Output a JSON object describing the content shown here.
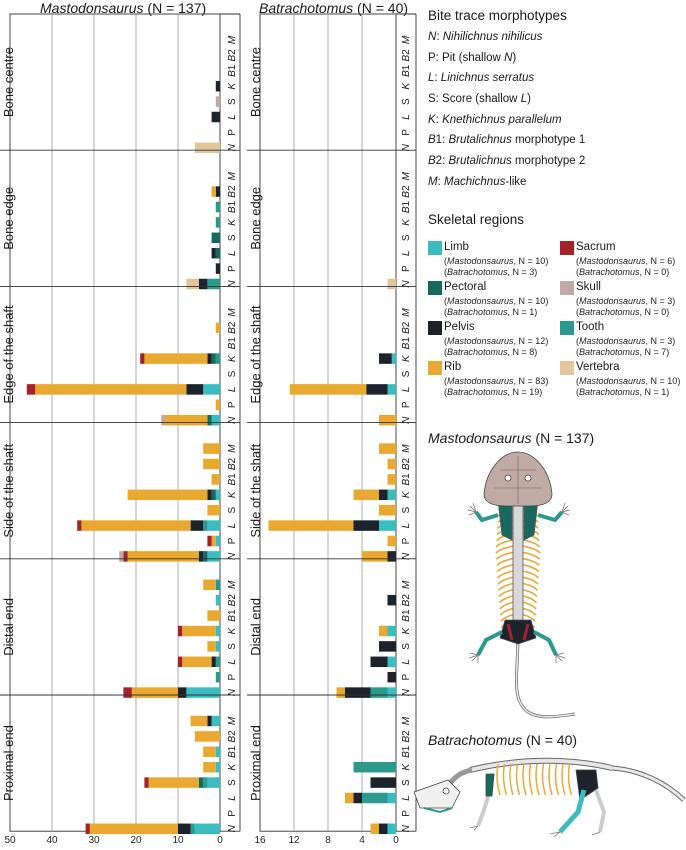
{
  "chart_data": {
    "type": "bar",
    "orientation": "horizontal-stacked-right-to-left",
    "panels": [
      {
        "id": "mas",
        "title_genus": "Mastodonsaurus",
        "title_n": " (N = 137)",
        "xlim": [
          0,
          50
        ],
        "xticks": [
          0,
          10,
          20,
          30,
          40,
          50
        ]
      },
      {
        "id": "bat",
        "title_genus": "Batrachotomus",
        "title_n": " (N = 40)",
        "xlim": [
          0,
          16
        ],
        "xticks": [
          0,
          4,
          8,
          12,
          16
        ]
      }
    ],
    "regions": [
      "Bone centre",
      "Bone edge",
      "Edge of the shaft",
      "Side of the shaft",
      "Distal end",
      "Proximal end"
    ],
    "morphotypes": [
      {
        "pre": "",
        "it": "M",
        "post": ""
      },
      {
        "pre": "",
        "it": "B",
        "post": "2"
      },
      {
        "pre": "",
        "it": "B",
        "post": "1"
      },
      {
        "pre": "",
        "it": "K",
        "post": ""
      },
      {
        "pre": "S",
        "it": "",
        "post": ""
      },
      {
        "pre": "",
        "it": "L",
        "post": ""
      },
      {
        "pre": "P",
        "it": "",
        "post": ""
      },
      {
        "pre": "",
        "it": "N",
        "post": ""
      }
    ],
    "elements": [
      "Limb",
      "Pectoral",
      "Pelvis",
      "Rib",
      "Sacrum",
      "Skull",
      "Tooth",
      "Vertebra"
    ],
    "colors": {
      "Limb": "#3bbcc0",
      "Pectoral": "#17685d",
      "Pelvis": "#1d232c",
      "Rib": "#e9a930",
      "Sacrum": "#a5212a",
      "Skull": "#c0aaa4",
      "Tooth": "#2b9a8d",
      "Vertebra": "#e2c59c"
    },
    "bars": {
      "mas": [
        [
          {},
          {},
          {},
          {
            "Pelvis": 1
          },
          {
            "Skull": 1
          },
          {
            "Pelvis": 2
          },
          {},
          {
            "Vertebra": 6
          }
        ],
        [
          {},
          {
            "Rib": 1,
            "Pelvis": 1
          },
          {
            "Tooth": 1
          },
          {
            "Tooth": 1
          },
          {
            "Pectoral": 2
          },
          {
            "Pectoral": 1,
            "Pelvis": 1
          },
          {
            "Pelvis": 1
          },
          {
            "Tooth": 3,
            "Pelvis": 2,
            "Vertebra": 3
          }
        ],
        [
          {},
          {
            "Rib": 1
          },
          {},
          {
            "Tooth": 1,
            "Pelvis": 1,
            "Rib": 15,
            "Sacrum": 1,
            "Pectoral": 1
          },
          {},
          {
            "Limb": 4,
            "Pelvis": 4,
            "Rib": 36,
            "Sacrum": 2
          },
          {
            "Rib": 1
          },
          {
            "Pectoral": 1,
            "Limb": 2,
            "Rib": 10,
            "Skull": 1
          }
        ],
        [
          {
            "Rib": 4
          },
          {
            "Rib": 4
          },
          {
            "Rib": 2
          },
          {
            "Limb": 1,
            "Pectoral": 1,
            "Pelvis": 1,
            "Rib": 19
          },
          {
            "Rib": 3
          },
          {
            "Tooth": 1,
            "Limb": 3,
            "Pelvis": 3,
            "Rib": 26,
            "Sacrum": 1
          },
          {
            "Limb": 1,
            "Rib": 1,
            "Sacrum": 1
          },
          {
            "Pelvis": 1,
            "Limb": 3,
            "Rib": 17,
            "Sacrum": 1,
            "Pectoral": 1,
            "Skull": 1
          }
        ],
        [
          {
            "Tooth": 1,
            "Rib": 3
          },
          {
            "Limb": 1
          },
          {
            "Rib": 3
          },
          {
            "Limb": 1,
            "Rib": 8,
            "Sacrum": 1
          },
          {
            "Limb": 1,
            "Rib": 2
          },
          {
            "Tooth": 1,
            "Pelvis": 1,
            "Rib": 7,
            "Sacrum": 1
          },
          {
            "Tooth": 1
          },
          {
            "Limb": 8,
            "Pelvis": 2,
            "Rib": 11,
            "Sacrum": 2
          }
        ],
        [
          {
            "Limb": 2,
            "Pelvis": 1,
            "Rib": 4
          },
          {
            "Rib": 6
          },
          {
            "Limb": 1,
            "Rib": 3
          },
          {
            "Limb": 1,
            "Rib": 3
          },
          {
            "Limb": 3,
            "Pectoral": 1,
            "Rib": 12,
            "Sacrum": 1,
            "Tooth": 1
          },
          {},
          {},
          {
            "Limb": 6,
            "Tooth": 1,
            "Pelvis": 3,
            "Rib": 21,
            "Sacrum": 1
          }
        ]
      ],
      "bat": [
        [
          {},
          {},
          {},
          {},
          {},
          {},
          {},
          {}
        ],
        [
          {},
          {},
          {},
          {},
          {},
          {},
          {},
          {
            "Vertebra": 1
          }
        ],
        [
          {},
          {},
          {},
          {
            "Limb": 0.5,
            "Pelvis": 1.5
          },
          {},
          {
            "Limb": 1,
            "Pelvis": 2.5,
            "Rib": 9
          },
          {},
          {
            "Rib": 2
          }
        ],
        [
          {
            "Rib": 2
          },
          {
            "Rib": 1
          },
          {
            "Rib": 1
          },
          {
            "Limb": 1,
            "Pelvis": 1,
            "Rib": 3
          },
          {
            "Rib": 2
          },
          {
            "Limb": 2,
            "Pelvis": 3,
            "Rib": 10
          },
          {
            "Rib": 1
          },
          {
            "Pelvis": 1,
            "Rib": 3
          }
        ],
        [
          {},
          {
            "Pelvis": 1
          },
          {},
          {
            "Limb": 1,
            "Rib": 1
          },
          {
            "Pelvis": 2
          },
          {
            "Limb": 1,
            "Pelvis": 2
          },
          {
            "Pelvis": 1
          },
          {
            "Limb": 1,
            "Tooth": 2,
            "Pelvis": 3,
            "Rib": 1
          }
        ],
        [
          {},
          {},
          {},
          {
            "Tooth": 5
          },
          {
            "Pelvis": 3
          },
          {
            "Limb": 1,
            "Pelvis": 1,
            "Rib": 1,
            "Tooth": 3
          },
          {},
          {
            "Pelvis": 1,
            "Rib": 1,
            "Limb": 1
          }
        ]
      ]
    },
    "legend_placement": "right",
    "grid": true
  },
  "legend": {
    "morph_title": "Bite trace morphotypes",
    "morph": [
      [
        [
          "N",
          "i"
        ],
        [
          ": ",
          "n"
        ],
        [
          "Nihilichnus nihilicus",
          "i"
        ]
      ],
      [
        [
          "P: Pit (shallow ",
          "n"
        ],
        [
          "N",
          "i"
        ],
        [
          ")",
          "n"
        ]
      ],
      [
        [
          "L",
          "i"
        ],
        [
          ": ",
          "n"
        ],
        [
          "Linichnus serratus",
          "i"
        ]
      ],
      [
        [
          "S: Score (shallow ",
          "n"
        ],
        [
          "L",
          "i"
        ],
        [
          ")",
          "n"
        ]
      ],
      [
        [
          "K",
          "i"
        ],
        [
          ": ",
          "n"
        ],
        [
          "Knethichnus parallelum",
          "i"
        ]
      ],
      [
        [
          "B",
          "i"
        ],
        [
          "1: ",
          "n"
        ],
        [
          "Brutalichnus",
          "i"
        ],
        [
          " morphotype 1",
          "n"
        ]
      ],
      [
        [
          "B",
          "i"
        ],
        [
          "2: ",
          "n"
        ],
        [
          "Brutalichnus",
          "i"
        ],
        [
          " morphotype 2",
          "n"
        ]
      ],
      [
        [
          "M",
          "i"
        ],
        [
          ": ",
          "n"
        ],
        [
          "Machichnus",
          "i"
        ],
        [
          "-like",
          "n"
        ]
      ]
    ],
    "skel_title": "Skeletal regions",
    "skel": [
      {
        "key": "Limb",
        "label": "Limb",
        "m": "10",
        "b": "3"
      },
      {
        "key": "Sacrum",
        "label": "Sacrum",
        "m": "6",
        "b": "0"
      },
      {
        "key": "Pectoral",
        "label": "Pectoral",
        "m": "10",
        "b": "1"
      },
      {
        "key": "Skull",
        "label": "Skull",
        "m": "3",
        "b": "0"
      },
      {
        "key": "Pelvis",
        "label": "Pelvis",
        "m": "12",
        "b": "8"
      },
      {
        "key": "Tooth",
        "label": "Tooth",
        "m": "3",
        "b": "7"
      },
      {
        "key": "Rib",
        "label": "Rib",
        "m": "83",
        "b": "19"
      },
      {
        "key": "Vertebra",
        "label": "Vertebra",
        "m": "10",
        "b": "1"
      }
    ],
    "genus_m": "Mastodonsaurus",
    "genus_b": "Batrachotomus",
    "n_prefix": ", N = "
  },
  "illustrations": {
    "mas_genus": "Mastodonsaurus",
    "mas_n": " (N = 137)",
    "bat_genus": "Batrachotomus",
    "bat_n": " (N = 40)"
  }
}
